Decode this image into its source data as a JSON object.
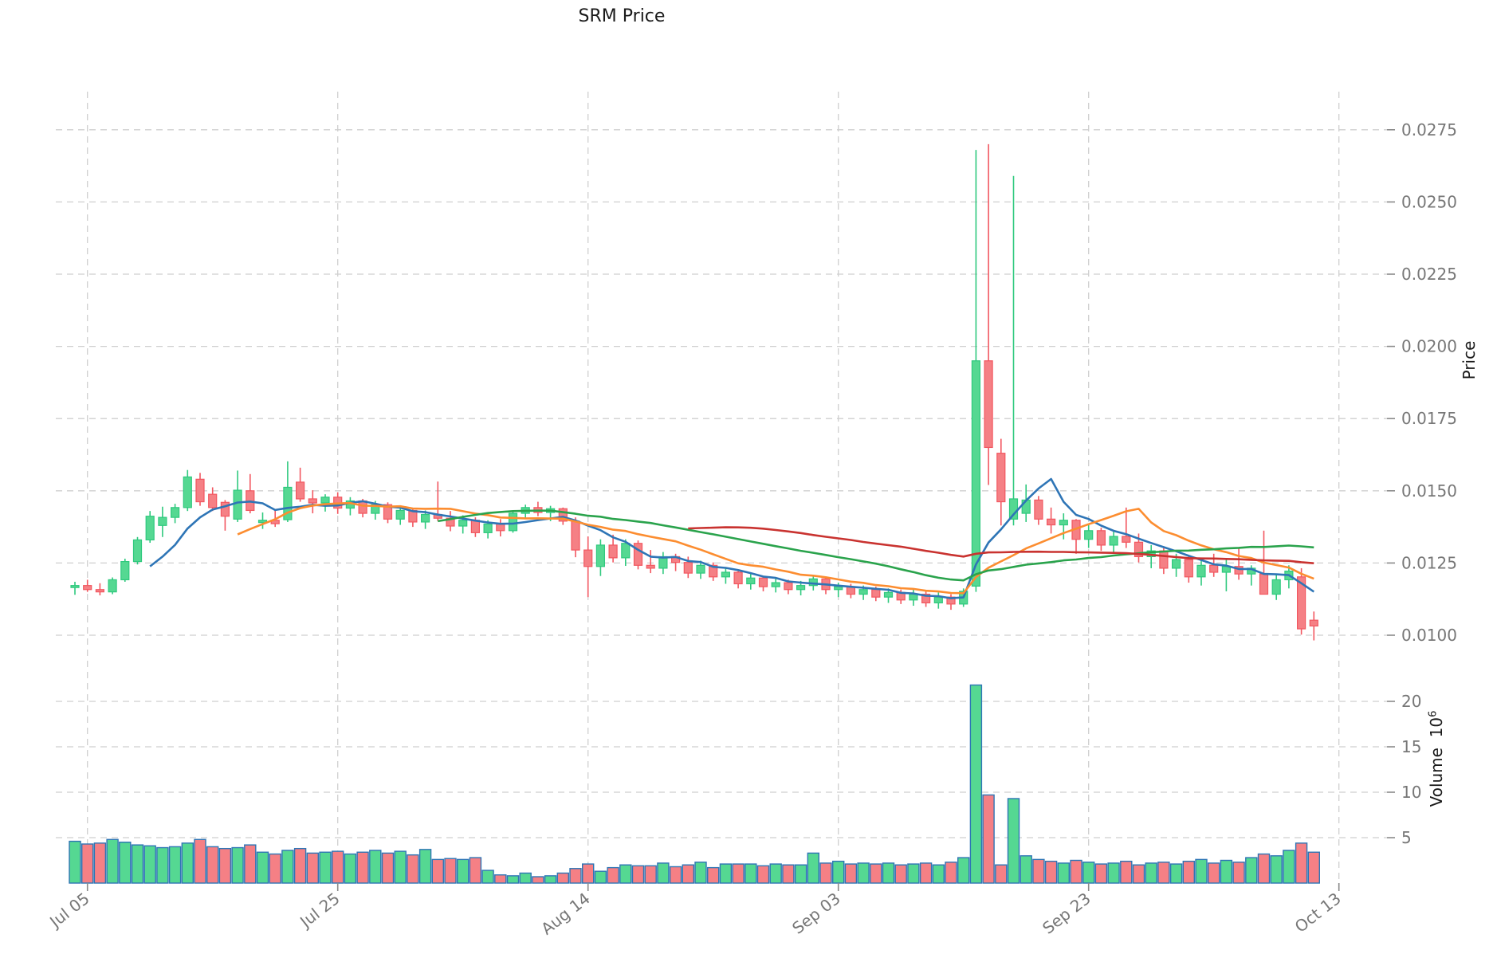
{
  "title": "SRM Price",
  "axes": {
    "price_label": "Price",
    "volume_label_text": "Volume",
    "volume_label_base": "10",
    "volume_label_exp": "6"
  },
  "colors": {
    "background": "#ffffff",
    "grid": "#cfcfcf",
    "tick_text": "#777777",
    "title_text": "#1a1a1a",
    "candle_up_fill": "#55d892",
    "candle_up_stroke": "#2fc97e",
    "candle_down_fill": "#f58085",
    "candle_down_stroke": "#f25760",
    "volume_bar_stroke": "#2e75b5",
    "ma_blue": "#2e75b6",
    "ma_orange": "#fc8d30",
    "ma_green": "#2aa34c",
    "ma_red": "#c93330"
  },
  "chart_data": {
    "type": "candlestick+volume",
    "title": "SRM Price",
    "grid": true,
    "legend": "none",
    "price_axis": {
      "label": "Price",
      "side": "right",
      "tick_labels": [
        "0.0275",
        "0.0250",
        "0.0225",
        "0.0200",
        "0.0175",
        "0.0150",
        "0.0125",
        "0.0100"
      ],
      "tick_values": [
        0.0275,
        0.025,
        0.0225,
        0.02,
        0.0175,
        0.015,
        0.0125,
        0.01
      ],
      "ylim": [
        0.0094,
        0.0289
      ]
    },
    "volume_axis": {
      "label": "Volume",
      "unit": "10^6",
      "side": "right",
      "tick_labels": [
        "20",
        "15",
        "10",
        "5"
      ],
      "tick_values": [
        20,
        15,
        10,
        5
      ],
      "ylim": [
        0,
        26
      ]
    },
    "x_axis": {
      "tick_labels": [
        "Jul 05",
        "Jul 25",
        "Aug 14",
        "Sep 03",
        "Sep 23",
        "Oct 13"
      ],
      "tick_indices": [
        1,
        21,
        41,
        61,
        81,
        101
      ],
      "label_rotation_deg": -38
    },
    "moving_averages": [
      {
        "id": "ma-blue",
        "window": 7,
        "color_key": "ma_blue"
      },
      {
        "id": "ma-orange",
        "window": 14,
        "color_key": "ma_orange"
      },
      {
        "id": "ma-green",
        "window": 30,
        "color_key": "ma_green"
      },
      {
        "id": "ma-red",
        "window": 50,
        "color_key": "ma_red"
      }
    ],
    "candles": {
      "dates": [
        "Jul 04",
        "Jul 05",
        "Jul 06",
        "Jul 07",
        "Jul 08",
        "Jul 09",
        "Jul 10",
        "Jul 11",
        "Jul 12",
        "Jul 13",
        "Jul 14",
        "Jul 15",
        "Jul 16",
        "Jul 17",
        "Jul 18",
        "Jul 19",
        "Jul 20",
        "Jul 21",
        "Jul 22",
        "Jul 23",
        "Jul 24",
        "Jul 25",
        "Jul 26",
        "Jul 27",
        "Jul 28",
        "Jul 29",
        "Jul 30",
        "Jul 31",
        "Aug 01",
        "Aug 02",
        "Aug 03",
        "Aug 04",
        "Aug 05",
        "Aug 06",
        "Aug 07",
        "Aug 08",
        "Aug 09",
        "Aug 10",
        "Aug 11",
        "Aug 12",
        "Aug 13",
        "Aug 14",
        "Aug 15",
        "Aug 16",
        "Aug 17",
        "Aug 18",
        "Aug 19",
        "Aug 20",
        "Aug 21",
        "Aug 22",
        "Aug 23",
        "Aug 24",
        "Aug 25",
        "Aug 26",
        "Aug 27",
        "Aug 28",
        "Aug 29",
        "Aug 30",
        "Aug 31",
        "Sep 01",
        "Sep 02",
        "Sep 03",
        "Sep 04",
        "Sep 05",
        "Sep 06",
        "Sep 07",
        "Sep 08",
        "Sep 09",
        "Sep 10",
        "Sep 11",
        "Sep 12",
        "Sep 13",
        "Sep 14",
        "Sep 15",
        "Sep 16",
        "Sep 17",
        "Sep 18",
        "Sep 19",
        "Sep 20",
        "Sep 21",
        "Sep 22",
        "Sep 23",
        "Sep 24",
        "Sep 25",
        "Sep 26",
        "Sep 27",
        "Sep 28",
        "Sep 29",
        "Sep 30",
        "Oct 01",
        "Oct 02",
        "Oct 03",
        "Oct 04",
        "Oct 05",
        "Oct 06",
        "Oct 07",
        "Oct 08",
        "Oct 09",
        "Oct 10",
        "Oct 11"
      ],
      "open": [
        0.01165,
        0.01172,
        0.01158,
        0.0115,
        0.01192,
        0.01255,
        0.0133,
        0.0138,
        0.01408,
        0.01442,
        0.0154,
        0.01488,
        0.0146,
        0.01402,
        0.015,
        0.0139,
        0.01398,
        0.014,
        0.0153,
        0.01472,
        0.01458,
        0.01478,
        0.0144,
        0.01465,
        0.01422,
        0.01452,
        0.01402,
        0.01432,
        0.01392,
        0.01418,
        0.01405,
        0.01378,
        0.01398,
        0.01355,
        0.01385,
        0.01362,
        0.01422,
        0.01442,
        0.01425,
        0.01438,
        0.01395,
        0.01295,
        0.01238,
        0.01312,
        0.01268,
        0.01318,
        0.01242,
        0.01232,
        0.01272,
        0.01252,
        0.01215,
        0.01242,
        0.01202,
        0.01218,
        0.01178,
        0.01198,
        0.01168,
        0.01182,
        0.01158,
        0.01172,
        0.01195,
        0.01158,
        0.01168,
        0.01142,
        0.01158,
        0.01132,
        0.01148,
        0.01122,
        0.01142,
        0.01112,
        0.01132,
        0.01108,
        0.0117,
        0.0195,
        0.0163,
        0.01402,
        0.01422,
        0.01468,
        0.01402,
        0.01382,
        0.01398,
        0.01332,
        0.01362,
        0.01312,
        0.01342,
        0.01322,
        0.01272,
        0.01292,
        0.01232,
        0.01262,
        0.01202,
        0.01242,
        0.01218,
        0.01238,
        0.01212,
        0.01212,
        0.01142,
        0.01192,
        0.01202,
        0.01052
      ],
      "high": [
        0.01185,
        0.01192,
        0.0118,
        0.012,
        0.01265,
        0.0134,
        0.0143,
        0.01445,
        0.01455,
        0.01572,
        0.01562,
        0.01512,
        0.01468,
        0.0157,
        0.01558,
        0.01425,
        0.01432,
        0.01602,
        0.0158,
        0.01502,
        0.01488,
        0.01495,
        0.01478,
        0.01472,
        0.01465,
        0.0146,
        0.01445,
        0.0144,
        0.01432,
        0.01532,
        0.0143,
        0.01415,
        0.01408,
        0.01398,
        0.01402,
        0.01432,
        0.01452,
        0.01462,
        0.01448,
        0.01442,
        0.01408,
        0.01342,
        0.01332,
        0.01348,
        0.01332,
        0.01328,
        0.01295,
        0.01288,
        0.01282,
        0.01272,
        0.01258,
        0.01252,
        0.01232,
        0.01222,
        0.01212,
        0.01202,
        0.01198,
        0.01192,
        0.01188,
        0.01205,
        0.01198,
        0.01182,
        0.01178,
        0.01172,
        0.01168,
        0.01162,
        0.01158,
        0.01158,
        0.01152,
        0.01148,
        0.01142,
        0.01162,
        0.0268,
        0.027,
        0.0168,
        0.0259,
        0.01522,
        0.01482,
        0.01442,
        0.01422,
        0.01402,
        0.01382,
        0.01372,
        0.01362,
        0.01442,
        0.01352,
        0.01312,
        0.01302,
        0.01282,
        0.01272,
        0.01262,
        0.01282,
        0.01262,
        0.01302,
        0.01242,
        0.01362,
        0.01212,
        0.01242,
        0.01232,
        0.01082
      ],
      "low": [
        0.0114,
        0.0115,
        0.01138,
        0.01142,
        0.01185,
        0.01245,
        0.0132,
        0.0134,
        0.01388,
        0.0143,
        0.01448,
        0.0143,
        0.01362,
        0.01392,
        0.01422,
        0.01368,
        0.01375,
        0.01392,
        0.01462,
        0.01422,
        0.01428,
        0.0142,
        0.01415,
        0.01408,
        0.014,
        0.01388,
        0.01382,
        0.01375,
        0.01368,
        0.01395,
        0.0136,
        0.01352,
        0.0134,
        0.01335,
        0.01342,
        0.01355,
        0.01402,
        0.01412,
        0.01395,
        0.01382,
        0.0127,
        0.01132,
        0.01205,
        0.01252,
        0.0124,
        0.01228,
        0.01215,
        0.01212,
        0.01222,
        0.01198,
        0.01195,
        0.01188,
        0.01178,
        0.01162,
        0.01158,
        0.01152,
        0.01148,
        0.01142,
        0.01138,
        0.01155,
        0.01142,
        0.01132,
        0.01128,
        0.01122,
        0.01118,
        0.01112,
        0.01108,
        0.01102,
        0.01098,
        0.01092,
        0.01088,
        0.01098,
        0.0115,
        0.0152,
        0.0138,
        0.0138,
        0.01392,
        0.01382,
        0.01352,
        0.01332,
        0.01282,
        0.01302,
        0.01292,
        0.01282,
        0.01302,
        0.01252,
        0.01232,
        0.01212,
        0.01202,
        0.01182,
        0.01172,
        0.01202,
        0.01152,
        0.01192,
        0.01172,
        0.01142,
        0.01122,
        0.01162,
        0.01002,
        0.00982
      ],
      "close": [
        0.01172,
        0.01158,
        0.0115,
        0.01192,
        0.01255,
        0.0133,
        0.01412,
        0.01408,
        0.01442,
        0.01548,
        0.01462,
        0.01442,
        0.01412,
        0.01502,
        0.01432,
        0.01398,
        0.01386,
        0.01512,
        0.01472,
        0.01458,
        0.01478,
        0.0144,
        0.01465,
        0.01422,
        0.01452,
        0.01402,
        0.01432,
        0.01392,
        0.01418,
        0.01405,
        0.01378,
        0.01398,
        0.01355,
        0.01385,
        0.01362,
        0.01422,
        0.01442,
        0.01425,
        0.01438,
        0.01395,
        0.01295,
        0.01238,
        0.01312,
        0.01268,
        0.01318,
        0.01242,
        0.01232,
        0.01272,
        0.01252,
        0.01215,
        0.01242,
        0.01202,
        0.01218,
        0.01178,
        0.01198,
        0.01168,
        0.01182,
        0.01158,
        0.01172,
        0.01195,
        0.01158,
        0.01168,
        0.01142,
        0.01158,
        0.01132,
        0.01148,
        0.01122,
        0.01142,
        0.01112,
        0.01132,
        0.01108,
        0.01152,
        0.0195,
        0.0165,
        0.01462,
        0.01472,
        0.01468,
        0.01402,
        0.01382,
        0.01398,
        0.01332,
        0.01362,
        0.01312,
        0.01342,
        0.01322,
        0.01272,
        0.01292,
        0.01232,
        0.01262,
        0.01202,
        0.01242,
        0.01218,
        0.01238,
        0.01212,
        0.01232,
        0.01142,
        0.01192,
        0.01222,
        0.01022,
        0.01032
      ],
      "volume_millions": [
        4.6,
        4.3,
        4.4,
        4.8,
        4.5,
        4.2,
        4.1,
        3.9,
        4.0,
        4.4,
        4.8,
        4.0,
        3.8,
        3.9,
        4.2,
        3.4,
        3.2,
        3.6,
        3.8,
        3.3,
        3.4,
        3.5,
        3.2,
        3.4,
        3.6,
        3.3,
        3.5,
        3.1,
        3.7,
        2.6,
        2.7,
        2.6,
        2.8,
        1.4,
        0.9,
        0.8,
        1.1,
        0.7,
        0.8,
        1.1,
        1.6,
        2.1,
        1.3,
        1.7,
        2.0,
        1.9,
        1.9,
        2.2,
        1.8,
        2.0,
        2.3,
        1.7,
        2.1,
        2.1,
        2.1,
        1.9,
        2.1,
        2.0,
        2.0,
        3.3,
        2.2,
        2.4,
        2.1,
        2.2,
        2.1,
        2.2,
        2.0,
        2.1,
        2.2,
        2.0,
        2.3,
        2.8,
        21.8,
        9.7,
        2.0,
        9.3,
        3.0,
        2.6,
        2.4,
        2.2,
        2.5,
        2.3,
        2.1,
        2.2,
        2.4,
        2.0,
        2.2,
        2.3,
        2.1,
        2.4,
        2.6,
        2.2,
        2.5,
        2.3,
        2.8,
        3.2,
        3.0,
        3.6,
        4.4,
        3.4
      ]
    }
  }
}
